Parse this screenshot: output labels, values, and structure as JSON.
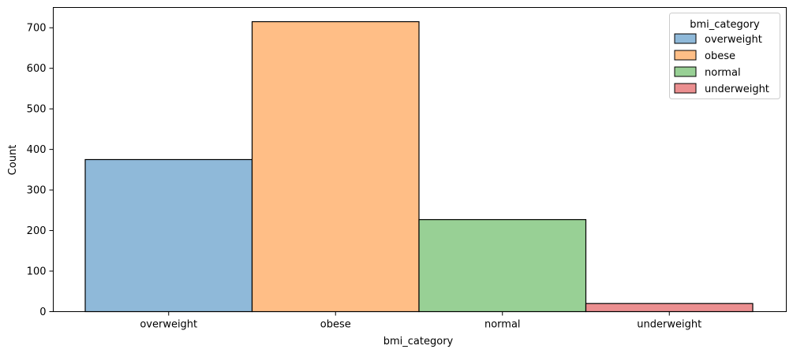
{
  "chart_data": {
    "type": "bar",
    "xlabel": "bmi_category",
    "ylabel": "Count",
    "ylim": [
      0,
      750
    ],
    "yticks": [
      0,
      100,
      200,
      300,
      400,
      500,
      600,
      700
    ],
    "categories": [
      "overweight",
      "obese",
      "normal",
      "underweight"
    ],
    "values": [
      375,
      715,
      227,
      20
    ],
    "colors": [
      "#8fb9d9",
      "#ffbe86",
      "#98d095",
      "#eb8f90"
    ],
    "grid": false,
    "legend": {
      "title": "bmi_category",
      "position": "top-right",
      "entries": [
        "overweight",
        "obese",
        "normal",
        "underweight"
      ]
    }
  }
}
